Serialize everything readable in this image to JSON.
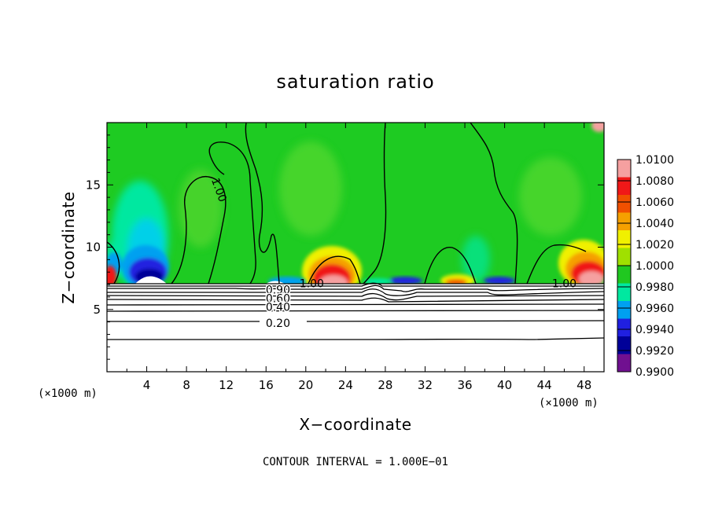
{
  "chart_data": {
    "type": "heatmap",
    "title": "saturation ratio",
    "xlabel": "X−coordinate",
    "ylabel": "Z−coordinate",
    "x_unit_left": "(×1000 m)",
    "x_unit_right": "(×1000 m)",
    "footer": "CONTOUR INTERVAL = 1.000E−01",
    "xlim": [
      0,
      50
    ],
    "ylim": [
      0,
      20
    ],
    "xticks": [
      4,
      8,
      12,
      16,
      20,
      24,
      28,
      32,
      36,
      40,
      44,
      48
    ],
    "yticks": [
      5,
      10,
      15
    ],
    "colorbar": {
      "levels": [
        "1.0100",
        "1.0080",
        "1.0060",
        "1.0040",
        "1.0020",
        "1.0000",
        "0.9980",
        "0.9960",
        "0.9940",
        "0.9920",
        "0.9900"
      ],
      "colors": [
        "#f5a0a0",
        "#f01818",
        "#f05000",
        "#f5a000",
        "#f0f000",
        "#a0e000",
        "#20c820",
        "#00e8a0",
        "#00a0f0",
        "#2020e0",
        "#000098",
        "#701090"
      ]
    },
    "contour_labels": [
      {
        "text": "1.00",
        "x": 20.6,
        "z": 7.1
      },
      {
        "text": "1.00",
        "x": 46.0,
        "z": 7.1
      },
      {
        "text": "1.00",
        "x": 11.3,
        "z": 14.6
      },
      {
        "text": "0.90",
        "x": 17.2,
        "z": 6.6
      },
      {
        "text": "0.60",
        "x": 17.2,
        "z": 5.9
      },
      {
        "text": "0.40",
        "x": 17.2,
        "z": 5.2
      },
      {
        "text": "0.20",
        "x": 17.2,
        "z": 3.9
      }
    ]
  }
}
